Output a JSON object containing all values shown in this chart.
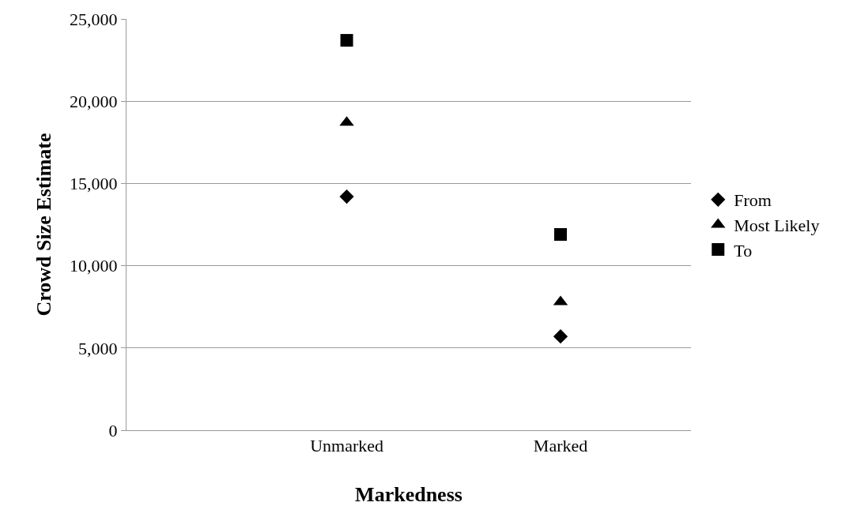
{
  "chart_data": {
    "type": "scatter",
    "xlabel": "Markedness",
    "ylabel": "Crowd Size Estimate",
    "categories": [
      "Unmarked",
      "Marked"
    ],
    "series": [
      {
        "name": "From",
        "color": "#000000",
        "marker": "diamond",
        "values": [
          14200,
          5700
        ]
      },
      {
        "name": "Most Likely",
        "color": "#000000",
        "marker": "triangle",
        "values": [
          18700,
          7800
        ]
      },
      {
        "name": "To",
        "color": "#000000",
        "marker": "square",
        "values": [
          23700,
          11900
        ]
      }
    ],
    "ylim": [
      0,
      25000
    ],
    "yticks": [
      {
        "value": 0,
        "label": "0"
      },
      {
        "value": 5000,
        "label": "5,000"
      },
      {
        "value": 10000,
        "label": "10,000"
      },
      {
        "value": 15000,
        "label": "15,000"
      },
      {
        "value": 20000,
        "label": "20,000"
      },
      {
        "value": 25000,
        "label": "25,000"
      }
    ],
    "grid": "y",
    "legend": "right"
  }
}
